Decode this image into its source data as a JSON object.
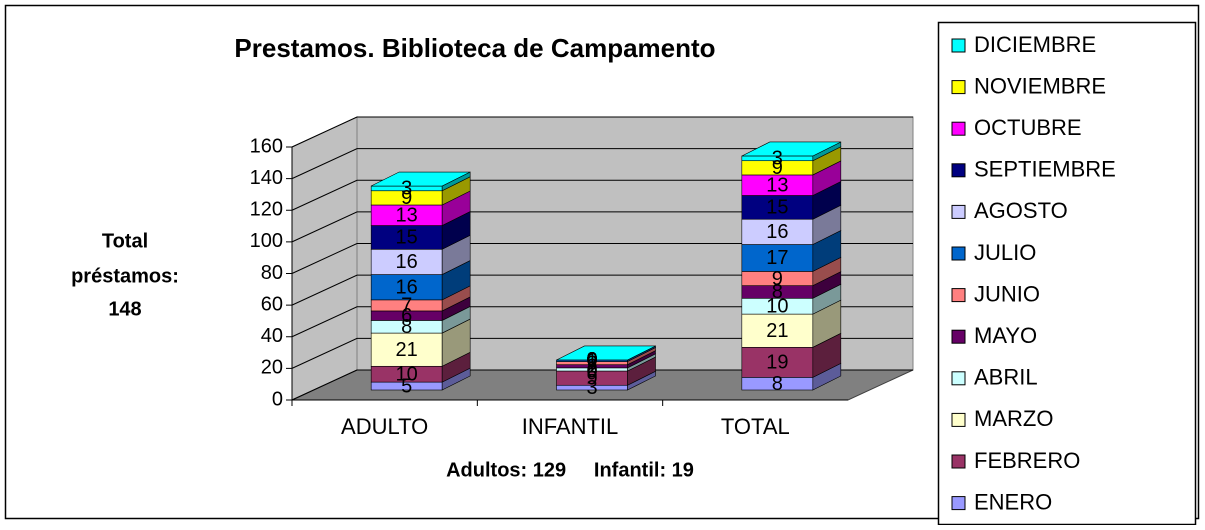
{
  "chart_data": {
    "type": "bar3d_stacked",
    "title": "Prestamos. Biblioteca de Campamento",
    "ylabel": [
      "Total",
      "préstamos:",
      "148"
    ],
    "xlabel": "Adultos: 129     Infantil: 19",
    "categories": [
      "ADULTO",
      "INFANTIL",
      "TOTAL"
    ],
    "ylim": [
      0,
      160
    ],
    "yticks": [
      0,
      20,
      40,
      60,
      80,
      100,
      120,
      140,
      160
    ],
    "grid": true,
    "legend": "right",
    "series": [
      {
        "name": "ENERO",
        "color": "#9999ff",
        "values": [
          5,
          3,
          8
        ]
      },
      {
        "name": "FEBRERO",
        "color": "#993366",
        "values": [
          10,
          9,
          19
        ]
      },
      {
        "name": "MARZO",
        "color": "#ffffcc",
        "values": [
          21,
          0,
          21
        ]
      },
      {
        "name": "ABRIL",
        "color": "#ccffff",
        "values": [
          8,
          2,
          10
        ]
      },
      {
        "name": "MAYO",
        "color": "#660066",
        "values": [
          6,
          2,
          8
        ]
      },
      {
        "name": "JUNIO",
        "color": "#ff8080",
        "values": [
          7,
          2,
          9
        ]
      },
      {
        "name": "JULIO",
        "color": "#0066cc",
        "values": [
          16,
          1,
          17
        ]
      },
      {
        "name": "AGOSTO",
        "color": "#ccccff",
        "values": [
          16,
          0,
          16
        ]
      },
      {
        "name": "SEPTIEMBRE",
        "color": "#000080",
        "values": [
          15,
          0,
          15
        ]
      },
      {
        "name": "OCTUBRE",
        "color": "#ff00ff",
        "values": [
          13,
          0,
          13
        ]
      },
      {
        "name": "NOVIEMBRE",
        "color": "#ffff00",
        "values": [
          9,
          0,
          9
        ]
      },
      {
        "name": "DICIEMBRE",
        "color": "#00ffff",
        "values": [
          3,
          0,
          3
        ]
      }
    ]
  }
}
